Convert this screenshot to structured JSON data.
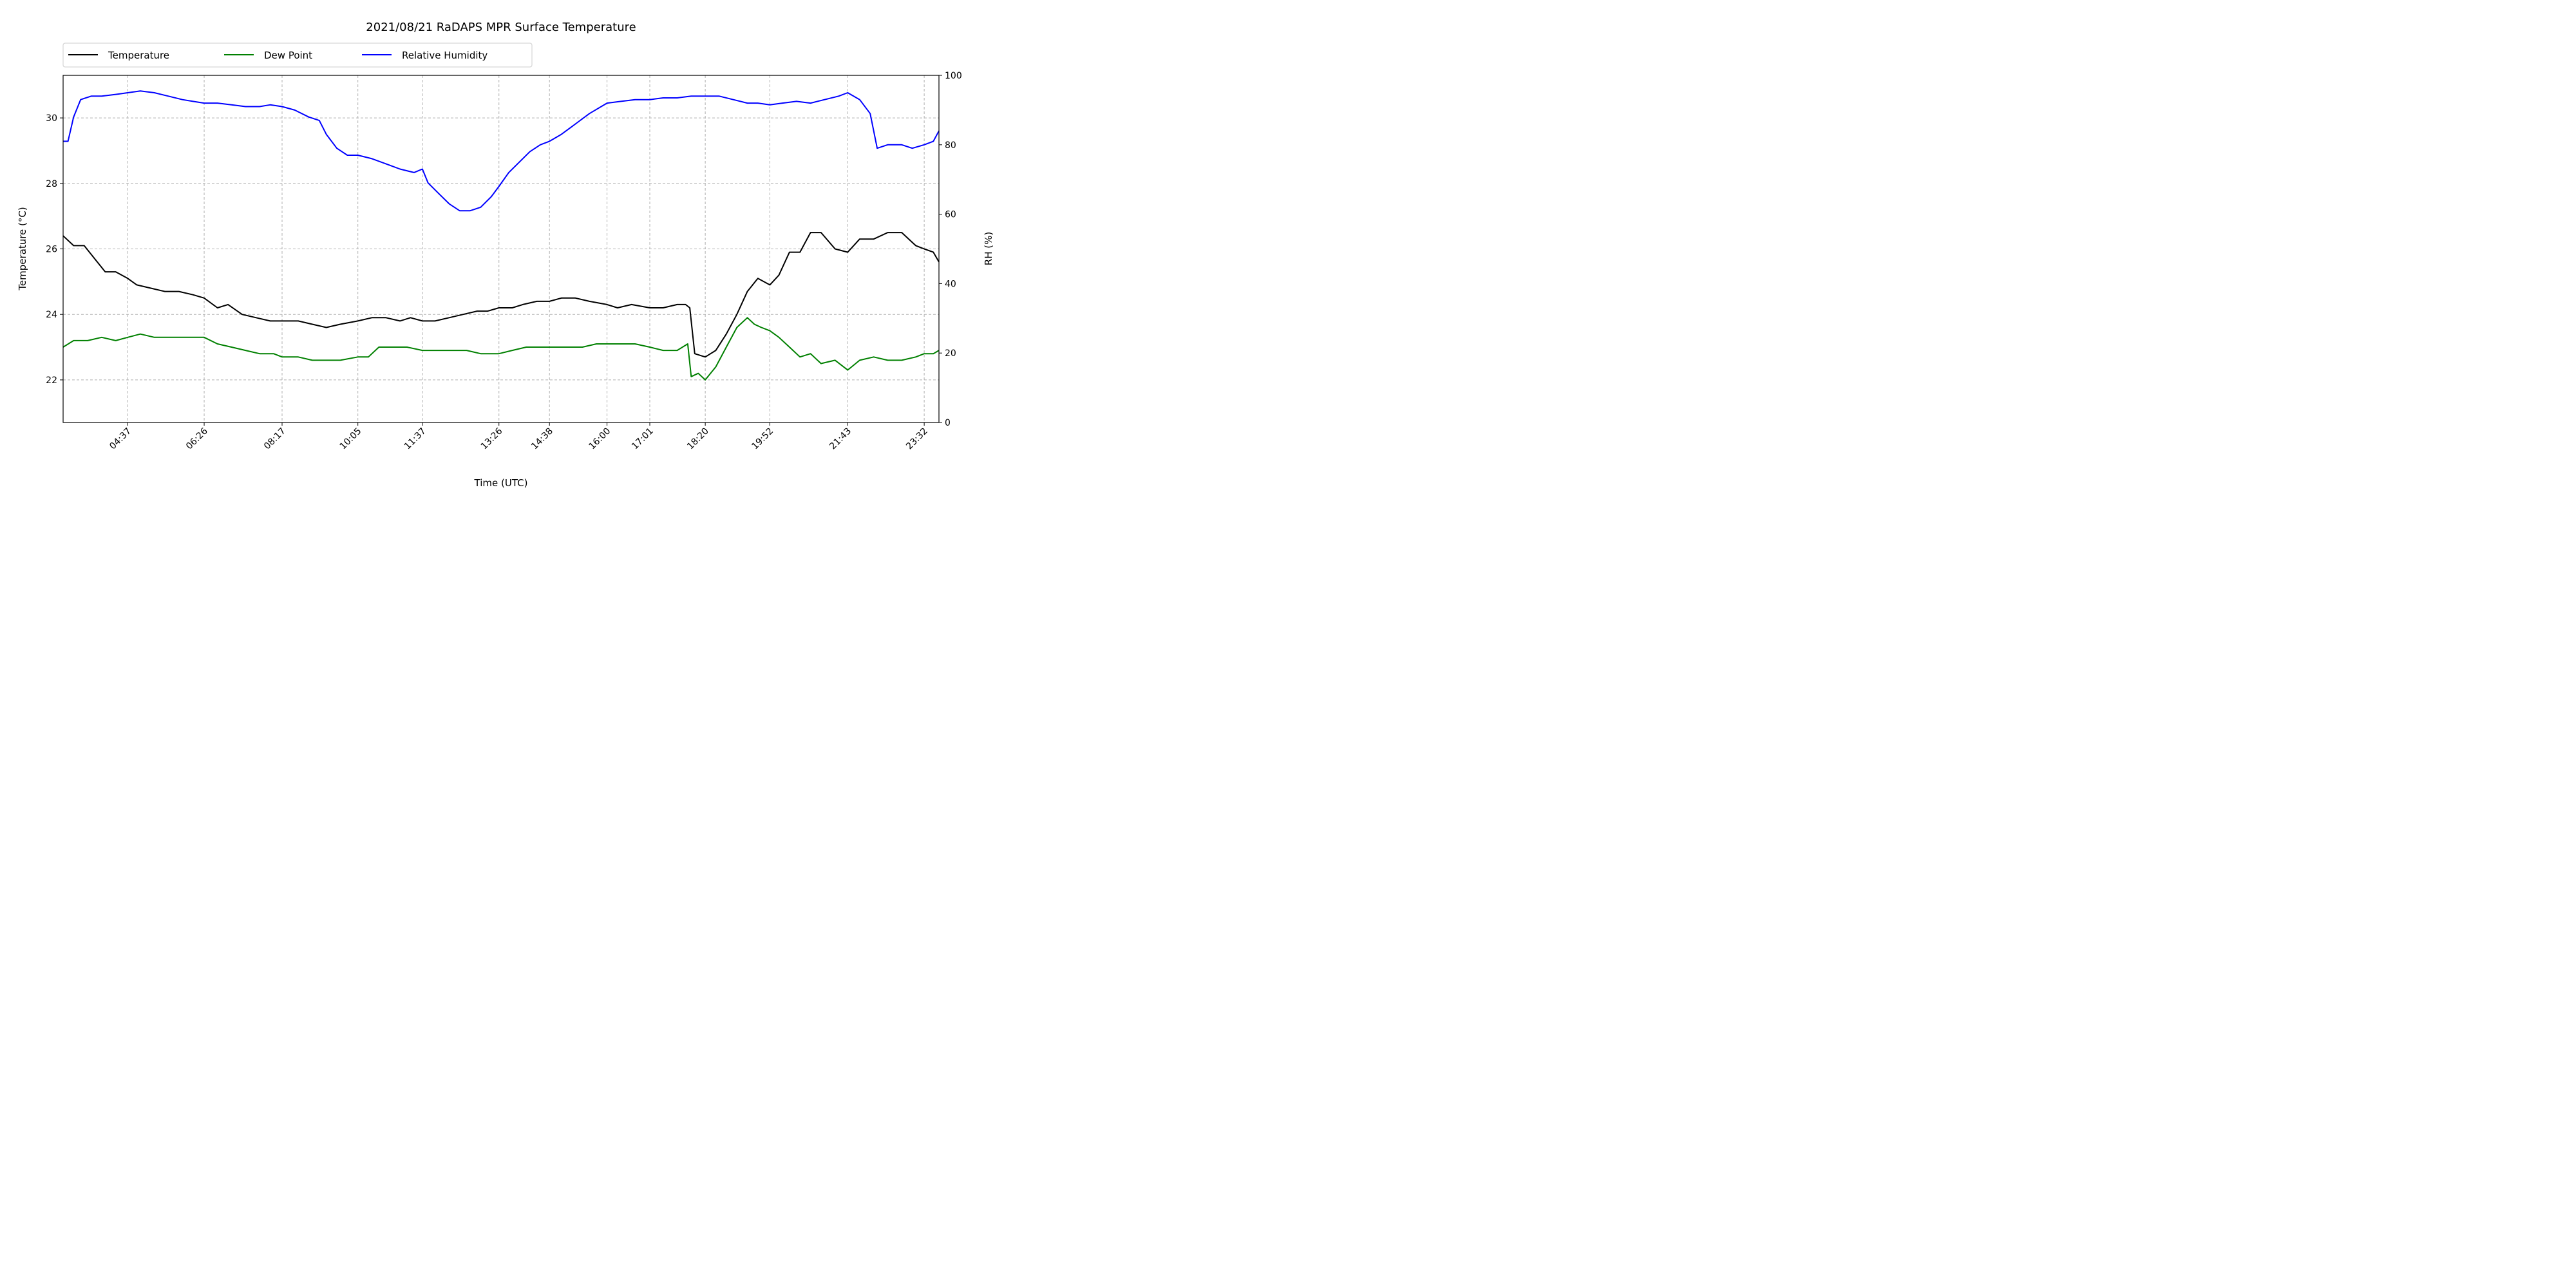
{
  "chart_data": {
    "type": "line",
    "title": "2021/08/21 RaDAPS MPR Surface Temperature",
    "xlabel": "Time (UTC)",
    "ylabel": "Temperature ($^\\circ$C)",
    "ylabel_display": "Temperature (°C)",
    "y2label": "RH (%)",
    "legend_position": "top-left-outside",
    "grid": true,
    "x_ticks": [
      "04:37",
      "06:26",
      "08:17",
      "10:05",
      "11:37",
      "13:26",
      "14:38",
      "16:00",
      "17:01",
      "18:20",
      "19:52",
      "21:43",
      "23:32"
    ],
    "y_ticks": [
      "22",
      "24",
      "26",
      "28",
      "30"
    ],
    "y2_ticks": [
      "0",
      "20",
      "40",
      "60",
      "80",
      "100"
    ],
    "ylim": [
      20.7,
      31.3
    ],
    "y2lim": [
      0,
      100
    ],
    "xlim": [
      "03:05",
      "23:53"
    ],
    "series": [
      {
        "name": "Temperature",
        "color": "#000000",
        "axis": "left",
        "x": [
          "03:05",
          "03:20",
          "03:35",
          "03:50",
          "04:05",
          "04:20",
          "04:37",
          "04:50",
          "05:10",
          "05:30",
          "05:50",
          "06:10",
          "06:26",
          "06:45",
          "07:00",
          "07:20",
          "07:40",
          "08:00",
          "08:17",
          "08:40",
          "09:00",
          "09:20",
          "09:40",
          "10:05",
          "10:25",
          "10:45",
          "11:05",
          "11:20",
          "11:37",
          "11:55",
          "12:15",
          "12:35",
          "12:55",
          "13:10",
          "13:26",
          "13:45",
          "14:00",
          "14:20",
          "14:38",
          "14:55",
          "15:15",
          "15:35",
          "16:00",
          "16:15",
          "16:35",
          "17:01",
          "17:20",
          "17:40",
          "17:52",
          "17:58",
          "18:05",
          "18:20",
          "18:35",
          "18:50",
          "19:05",
          "19:20",
          "19:35",
          "19:52",
          "20:05",
          "20:20",
          "20:35",
          "20:50",
          "21:05",
          "21:25",
          "21:43",
          "22:00",
          "22:20",
          "22:40",
          "23:00",
          "23:20",
          "23:32",
          "23:45",
          "23:53"
        ],
        "values": [
          26.4,
          26.1,
          26.1,
          25.7,
          25.3,
          25.3,
          25.1,
          24.9,
          24.8,
          24.7,
          24.7,
          24.6,
          24.5,
          24.2,
          24.3,
          24.0,
          23.9,
          23.8,
          23.8,
          23.8,
          23.7,
          23.6,
          23.7,
          23.8,
          23.9,
          23.9,
          23.8,
          23.9,
          23.8,
          23.8,
          23.9,
          24.0,
          24.1,
          24.1,
          24.2,
          24.2,
          24.3,
          24.4,
          24.4,
          24.5,
          24.5,
          24.4,
          24.3,
          24.2,
          24.3,
          24.2,
          24.2,
          24.3,
          24.3,
          24.2,
          22.8,
          22.7,
          22.9,
          23.4,
          24.0,
          24.7,
          25.1,
          24.9,
          25.2,
          25.9,
          25.9,
          26.5,
          26.5,
          26.0,
          25.9,
          26.3,
          26.3,
          26.5,
          26.5,
          26.1,
          26.0,
          25.9,
          25.6
        ]
      },
      {
        "name": "Dew Point",
        "color": "#008000",
        "axis": "left",
        "x": [
          "03:05",
          "03:20",
          "03:40",
          "04:00",
          "04:20",
          "04:37",
          "04:55",
          "05:15",
          "05:35",
          "05:55",
          "06:15",
          "06:26",
          "06:45",
          "07:05",
          "07:25",
          "07:45",
          "08:05",
          "08:17",
          "08:40",
          "09:00",
          "09:20",
          "09:40",
          "10:05",
          "10:20",
          "10:35",
          "10:55",
          "11:15",
          "11:37",
          "12:00",
          "12:20",
          "12:40",
          "13:00",
          "13:26",
          "13:45",
          "14:05",
          "14:25",
          "14:38",
          "15:00",
          "15:25",
          "15:45",
          "16:00",
          "16:20",
          "16:40",
          "17:01",
          "17:20",
          "17:40",
          "17:55",
          "18:00",
          "18:10",
          "18:20",
          "18:35",
          "18:50",
          "19:05",
          "19:20",
          "19:30",
          "19:40",
          "19:52",
          "20:05",
          "20:20",
          "20:35",
          "20:50",
          "21:05",
          "21:25",
          "21:43",
          "22:00",
          "22:20",
          "22:40",
          "23:00",
          "23:20",
          "23:32",
          "23:45",
          "23:53"
        ],
        "values": [
          23.0,
          23.2,
          23.2,
          23.3,
          23.2,
          23.3,
          23.4,
          23.3,
          23.3,
          23.3,
          23.3,
          23.3,
          23.1,
          23.0,
          22.9,
          22.8,
          22.8,
          22.7,
          22.7,
          22.6,
          22.6,
          22.6,
          22.7,
          22.7,
          23.0,
          23.0,
          23.0,
          22.9,
          22.9,
          22.9,
          22.9,
          22.8,
          22.8,
          22.9,
          23.0,
          23.0,
          23.0,
          23.0,
          23.0,
          23.1,
          23.1,
          23.1,
          23.1,
          23.0,
          22.9,
          22.9,
          23.1,
          22.1,
          22.2,
          22.0,
          22.4,
          23.0,
          23.6,
          23.9,
          23.7,
          23.6,
          23.5,
          23.3,
          23.0,
          22.7,
          22.8,
          22.5,
          22.6,
          22.3,
          22.6,
          22.7,
          22.6,
          22.6,
          22.7,
          22.8,
          22.8,
          22.9
        ]
      },
      {
        "name": "Relative Humidity",
        "color": "#0000ff",
        "axis": "right",
        "x": [
          "03:05",
          "03:12",
          "03:20",
          "03:30",
          "03:45",
          "04:00",
          "04:20",
          "04:37",
          "04:55",
          "05:15",
          "05:35",
          "05:55",
          "06:10",
          "06:26",
          "06:45",
          "07:05",
          "07:25",
          "07:45",
          "08:00",
          "08:17",
          "08:35",
          "08:55",
          "09:10",
          "09:20",
          "09:35",
          "09:50",
          "10:05",
          "10:25",
          "10:45",
          "11:05",
          "11:25",
          "11:37",
          "11:45",
          "12:00",
          "12:15",
          "12:30",
          "12:45",
          "13:00",
          "13:15",
          "13:26",
          "13:40",
          "13:55",
          "14:10",
          "14:25",
          "14:38",
          "14:55",
          "15:15",
          "15:35",
          "16:00",
          "16:20",
          "16:40",
          "17:01",
          "17:20",
          "17:40",
          "18:00",
          "18:20",
          "18:40",
          "19:00",
          "19:20",
          "19:35",
          "19:52",
          "20:10",
          "20:30",
          "20:50",
          "21:10",
          "21:30",
          "21:43",
          "22:00",
          "22:15",
          "22:25",
          "22:40",
          "23:00",
          "23:15",
          "23:32",
          "23:45",
          "23:53"
        ],
        "values": [
          81,
          81,
          88,
          93,
          94,
          94,
          94.5,
          95,
          95.5,
          95,
          94,
          93,
          92.5,
          92,
          92,
          91.5,
          91,
          91,
          91.5,
          91,
          90,
          88,
          87,
          83,
          79,
          77,
          77,
          76,
          74.5,
          73,
          72,
          73,
          69,
          66,
          63,
          61,
          61,
          62,
          65,
          68,
          72,
          75,
          78,
          80,
          81,
          83,
          86,
          89,
          92,
          92.5,
          93,
          93,
          93.5,
          93.5,
          94,
          94,
          94,
          93,
          92,
          92,
          91.5,
          92,
          92.5,
          92,
          93,
          94,
          95,
          93,
          89,
          79,
          80,
          80,
          79,
          80,
          81,
          84
        ]
      }
    ]
  }
}
